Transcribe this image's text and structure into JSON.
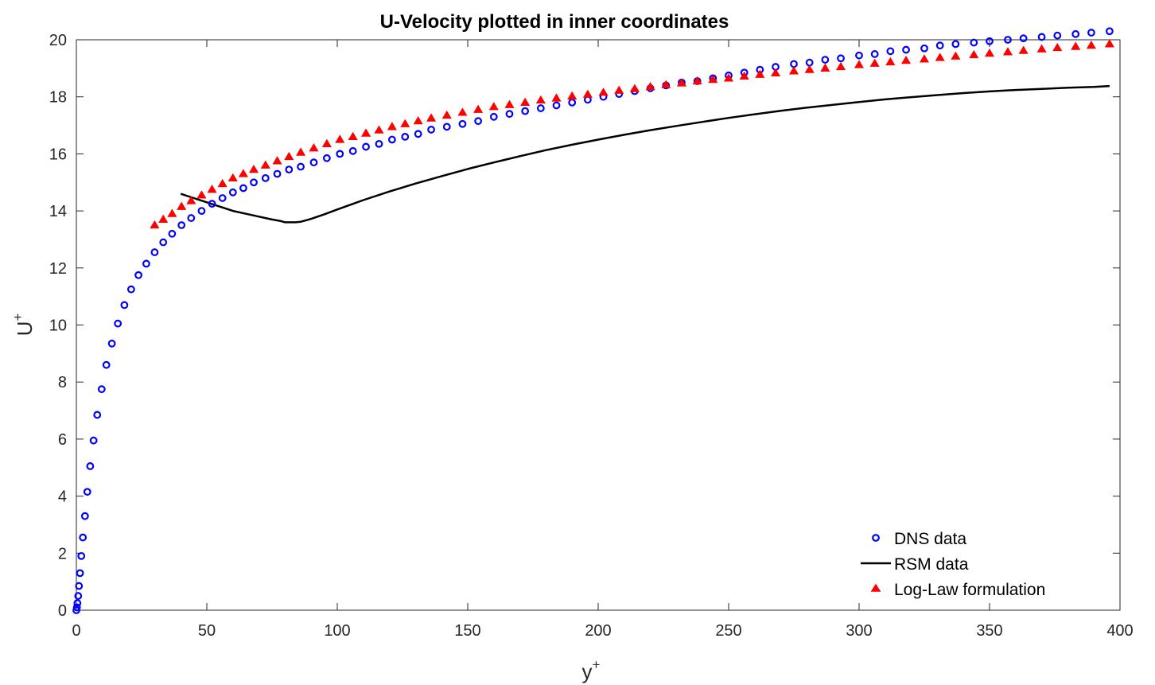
{
  "chart_data": {
    "type": "scatter",
    "title": "U-Velocity plotted in inner coordinates",
    "xlabel": "y",
    "xlabel_sup": "+",
    "ylabel": "U",
    "ylabel_sup": "+",
    "xlim": [
      0,
      400
    ],
    "ylim": [
      0,
      20
    ],
    "xticks": [
      0,
      50,
      100,
      150,
      200,
      250,
      300,
      350,
      400
    ],
    "yticks": [
      0,
      2,
      4,
      6,
      8,
      10,
      12,
      14,
      16,
      18,
      20
    ],
    "grid": false,
    "legend_position": "bottom-right",
    "series": [
      {
        "name": "DNS data",
        "style": "circle-markers",
        "color": "#0000ff",
        "x": [
          0,
          0.2,
          0.4,
          0.7,
          1.0,
          1.4,
          1.9,
          2.5,
          3.3,
          4.2,
          5.3,
          6.6,
          8.0,
          9.7,
          11.5,
          13.6,
          15.9,
          18.4,
          21.0,
          23.8,
          26.8,
          30.0,
          33.3,
          36.7,
          40.3,
          44.0,
          48.0,
          52.0,
          56.0,
          60.0,
          64.0,
          68.0,
          72.5,
          77.0,
          81.5,
          86.0,
          91.0,
          96.0,
          101.0,
          106.0,
          111.0,
          116.0,
          121.0,
          126.0,
          131.0,
          136.0,
          142.0,
          148.0,
          154.0,
          160.0,
          166.0,
          172.0,
          178.0,
          184.0,
          190.0,
          196.0,
          202.0,
          208.0,
          214.0,
          220.0,
          226.0,
          232.0,
          238.0,
          244.0,
          250.0,
          256.0,
          262.0,
          268.0,
          275.0,
          281.0,
          287.0,
          293.0,
          300.0,
          306.0,
          312.0,
          318.0,
          325.0,
          331.0,
          337.0,
          344.0,
          350.0,
          357.0,
          363.0,
          370.0,
          376.0,
          383.0,
          389.0,
          396.0
        ],
        "y": [
          0,
          0.1,
          0.25,
          0.5,
          0.85,
          1.3,
          1.9,
          2.55,
          3.3,
          4.15,
          5.05,
          5.95,
          6.85,
          7.75,
          8.6,
          9.35,
          10.05,
          10.7,
          11.25,
          11.75,
          12.15,
          12.55,
          12.9,
          13.2,
          13.5,
          13.75,
          14.0,
          14.25,
          14.45,
          14.65,
          14.8,
          15.0,
          15.15,
          15.3,
          15.45,
          15.55,
          15.7,
          15.85,
          16.0,
          16.1,
          16.25,
          16.35,
          16.5,
          16.6,
          16.7,
          16.85,
          16.95,
          17.05,
          17.15,
          17.3,
          17.4,
          17.5,
          17.6,
          17.7,
          17.8,
          17.9,
          18.0,
          18.1,
          18.2,
          18.3,
          18.4,
          18.5,
          18.55,
          18.65,
          18.75,
          18.85,
          18.95,
          19.05,
          19.15,
          19.2,
          19.3,
          19.35,
          19.45,
          19.5,
          19.6,
          19.65,
          19.7,
          19.8,
          19.85,
          19.9,
          19.95,
          20.0,
          20.05,
          20.1,
          20.15,
          20.2,
          20.25,
          20.3
        ]
      },
      {
        "name": "RSM data",
        "style": "solid-line",
        "color": "#000000",
        "x": [
          40,
          45,
          50,
          55,
          60,
          65,
          70,
          75,
          78,
          80,
          82,
          84,
          86,
          88,
          90,
          95,
          100,
          110,
          120,
          130,
          140,
          150,
          160,
          170,
          180,
          190,
          200,
          210,
          220,
          230,
          240,
          250,
          260,
          270,
          280,
          290,
          300,
          310,
          320,
          330,
          340,
          350,
          360,
          370,
          380,
          390,
          396
        ],
        "y": [
          14.6,
          14.45,
          14.3,
          14.15,
          14.0,
          13.9,
          13.8,
          13.7,
          13.65,
          13.6,
          13.6,
          13.6,
          13.62,
          13.67,
          13.72,
          13.88,
          14.05,
          14.38,
          14.68,
          14.96,
          15.22,
          15.47,
          15.7,
          15.92,
          16.13,
          16.32,
          16.5,
          16.67,
          16.83,
          16.98,
          17.12,
          17.26,
          17.39,
          17.51,
          17.62,
          17.72,
          17.82,
          17.91,
          17.99,
          18.06,
          18.13,
          18.19,
          18.24,
          18.28,
          18.32,
          18.35,
          18.38
        ]
      },
      {
        "name": "Log-Law formulation",
        "style": "triangle-markers",
        "color": "#ff0000",
        "x": [
          30.0,
          33.3,
          36.7,
          40.3,
          44.0,
          48.0,
          52.0,
          56.0,
          60.0,
          64.0,
          68.0,
          72.5,
          77.0,
          81.5,
          86.0,
          91.0,
          96.0,
          101.0,
          106.0,
          111.0,
          116.0,
          121.0,
          126.0,
          131.0,
          136.0,
          142.0,
          148.0,
          154.0,
          160.0,
          166.0,
          172.0,
          178.0,
          184.0,
          190.0,
          196.0,
          202.0,
          208.0,
          214.0,
          220.0,
          226.0,
          232.0,
          238.0,
          244.0,
          250.0,
          256.0,
          262.0,
          268.0,
          275.0,
          281.0,
          287.0,
          293.0,
          300.0,
          306.0,
          312.0,
          318.0,
          325.0,
          331.0,
          337.0,
          344.0,
          350.0,
          357.0,
          363.0,
          370.0,
          376.0,
          383.0,
          389.0,
          396.0
        ],
        "y": [
          13.5,
          13.7,
          13.9,
          14.15,
          14.35,
          14.55,
          14.75,
          14.95,
          15.15,
          15.3,
          15.45,
          15.6,
          15.75,
          15.9,
          16.05,
          16.2,
          16.35,
          16.5,
          16.6,
          16.72,
          16.83,
          16.95,
          17.05,
          17.15,
          17.25,
          17.35,
          17.45,
          17.55,
          17.65,
          17.72,
          17.8,
          17.88,
          17.95,
          18.02,
          18.08,
          18.15,
          18.22,
          18.28,
          18.35,
          18.42,
          18.48,
          18.55,
          18.6,
          18.65,
          18.72,
          18.78,
          18.83,
          18.9,
          18.95,
          19.0,
          19.05,
          19.12,
          19.17,
          19.22,
          19.27,
          19.32,
          19.37,
          19.42,
          19.47,
          19.52,
          19.57,
          19.62,
          19.67,
          19.72,
          19.76,
          19.8,
          19.85
        ]
      }
    ]
  }
}
